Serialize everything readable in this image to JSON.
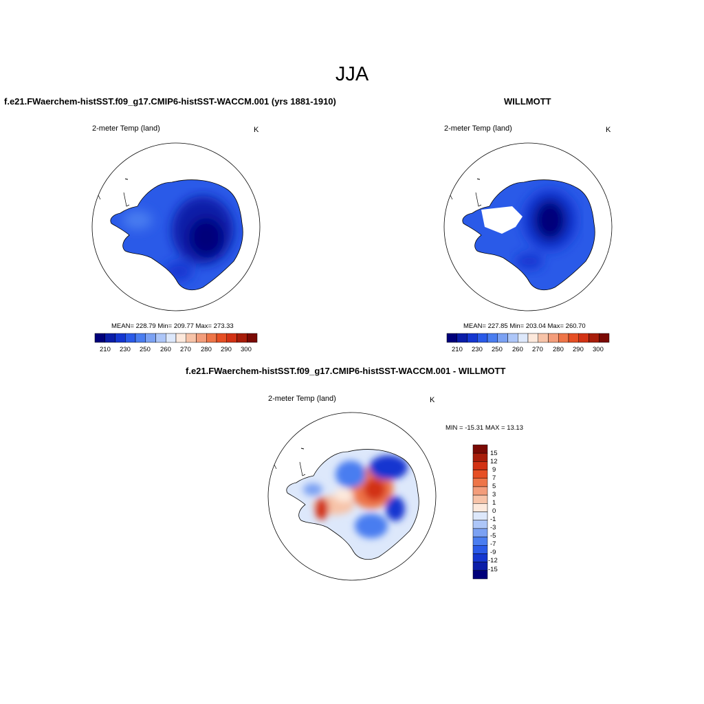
{
  "season_title": "JJA",
  "panels": [
    {
      "case_title": "f.e21.FWaerchem-histSST.f09_g17.CMIP6-histSST-WACCM.001 (yrs 1881-1910)",
      "variable_label": "2-meter Temp (land)",
      "units": "K",
      "stats": "MEAN= 228.79  Min= 209.77  Max= 273.33"
    },
    {
      "case_title": "WILLMOTT",
      "variable_label": "2-meter Temp (land)",
      "units": "K",
      "stats": "MEAN= 227.85  Min= 203.04  Max= 260.70"
    },
    {
      "case_title": "f.e21.FWaerchem-histSST.f09_g17.CMIP6-histSST-WACCM.001 - WILLMOTT",
      "variable_label": "2-meter Temp (land)",
      "units": "K",
      "stats": "MIN = -15.31 MAX =  13.13"
    }
  ],
  "colorbar_abs": {
    "tick_labels": [
      "210",
      "230",
      "250",
      "260",
      "270",
      "280",
      "290",
      "300"
    ],
    "colors": [
      "#00007a",
      "#0a1da8",
      "#1436d0",
      "#2a5ae8",
      "#4a7df0",
      "#7ba1f3",
      "#adc6f8",
      "#dde8fb",
      "#fde9dc",
      "#f7c3a8",
      "#f39d7b",
      "#ee7548",
      "#e64f24",
      "#d23214",
      "#a81d0a",
      "#7a0a04"
    ]
  },
  "colorbar_diff": {
    "tick_labels": [
      "15",
      "12",
      "9",
      "7",
      "5",
      "3",
      "1",
      "0",
      "-1",
      "-3",
      "-5",
      "-7",
      "-9",
      "-12",
      "-15"
    ],
    "colors": [
      "#7a0a04",
      "#a81d0a",
      "#d23214",
      "#e64f24",
      "#ee7548",
      "#f39d7b",
      "#f7c3a8",
      "#fde9dc",
      "#dde8fb",
      "#adc6f8",
      "#7ba1f3",
      "#4a7df0",
      "#2a5ae8",
      "#1436d0",
      "#0a1da8",
      "#00007a"
    ]
  }
}
